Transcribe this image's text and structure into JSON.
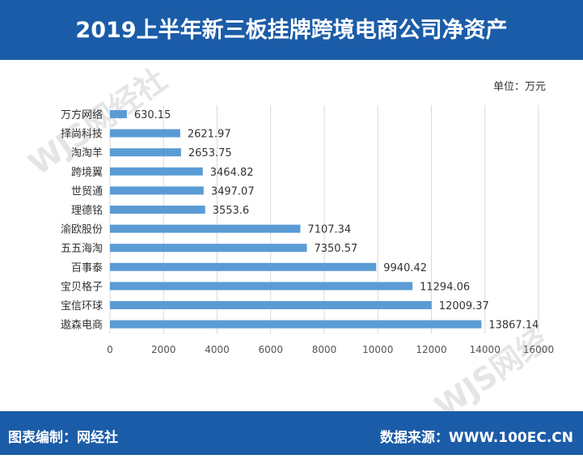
{
  "header": {
    "title": "2019上半年新三板挂牌跨境电商公司净资产"
  },
  "unit_label": "单位：万元",
  "footer": {
    "left": "图表编制：网经社",
    "right": "数据来源：WWW.100EC.CN"
  },
  "watermark": "WJS网经社",
  "colors": {
    "bar": "#5b9bd5",
    "header": "#1b5ca8",
    "grid": "#d9d9d9"
  },
  "chart_data": {
    "type": "bar",
    "orientation": "horizontal",
    "categories": [
      "万方网络",
      "择尚科技",
      "淘淘羊",
      "跨境翼",
      "世贸通",
      "理德铭",
      "渝欧股份",
      "五五海淘",
      "百事泰",
      "宝贝格子",
      "宝信环球",
      "遨森电商"
    ],
    "values": [
      630.15,
      2621.97,
      2653.75,
      3464.82,
      3497.07,
      3553.6,
      7107.34,
      7350.57,
      9940.42,
      11294.06,
      12009.37,
      13867.14
    ],
    "value_labels": [
      "630.15",
      "2621.97",
      "2653.75",
      "3464.82",
      "3497.07",
      "3553.6",
      "7107.34",
      "7350.57",
      "9940.42",
      "11294.06",
      "12009.37",
      "13867.14"
    ],
    "xlim": [
      0,
      16000
    ],
    "ticks": [
      "0",
      "2000",
      "4000",
      "6000",
      "8000",
      "10000",
      "12000",
      "14000",
      "16000"
    ],
    "grid": true
  }
}
